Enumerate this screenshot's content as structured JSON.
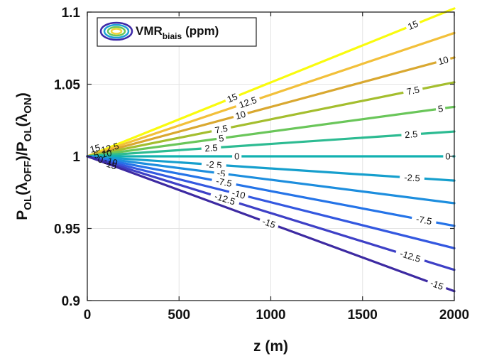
{
  "chart_data": {
    "type": "line",
    "title": "",
    "xlabel": "z (m)",
    "ylabel": "P_OL(λ_OFF)/P_OL(λ_ON)",
    "xlim": [
      0,
      2000
    ],
    "ylim": [
      0.9,
      1.1
    ],
    "xticks": [
      0,
      500,
      1000,
      1500,
      2000
    ],
    "yticks": [
      0.9,
      0.95,
      1,
      1.05,
      1.1
    ],
    "xtick_labels": [
      "0",
      "500",
      "1000",
      "1500",
      "2000"
    ],
    "ytick_labels": [
      "0.9",
      "0.95",
      "1",
      "1.05",
      "1.1"
    ],
    "grid": true,
    "legend": {
      "position": "top-left",
      "label_main": "VMR",
      "label_sub": "biais",
      "label_unit": "(ppm)"
    },
    "series": [
      {
        "name": "15",
        "level_label": "15",
        "x": [
          0,
          2000
        ],
        "y": [
          1,
          1.1025
        ],
        "color": "#f9fb0e"
      },
      {
        "name": "12.5",
        "level_label": "12.5",
        "x": [
          0,
          2000
        ],
        "y": [
          1,
          1.0855
        ],
        "color": "#f2c03a"
      },
      {
        "name": "10",
        "level_label": "10",
        "x": [
          0,
          2000
        ],
        "y": [
          1,
          1.0685
        ],
        "color": "#d9a830"
      },
      {
        "name": "7.5",
        "level_label": "7.5",
        "x": [
          0,
          2000
        ],
        "y": [
          1,
          1.0513
        ],
        "color": "#a4be2e"
      },
      {
        "name": "5",
        "level_label": "5",
        "x": [
          0,
          2000
        ],
        "y": [
          1,
          1.0343
        ],
        "color": "#6ac65a"
      },
      {
        "name": "2.5",
        "level_label": "2.5",
        "x": [
          0,
          2000
        ],
        "y": [
          1,
          1.0172
        ],
        "color": "#2dbb92"
      },
      {
        "name": "0",
        "level_label": "0",
        "x": [
          0,
          2000
        ],
        "y": [
          1,
          1.0
        ],
        "color": "#12b1b0"
      },
      {
        "name": "-2.5",
        "level_label": "-2.5",
        "x": [
          0,
          2000
        ],
        "y": [
          1,
          0.9832
        ],
        "color": "#169fcd"
      },
      {
        "name": "-5",
        "level_label": "-5",
        "x": [
          0,
          2000
        ],
        "y": [
          1,
          0.9675
        ],
        "color": "#1d8ede"
      },
      {
        "name": "-7.5",
        "level_label": "-7.5",
        "x": [
          0,
          2000
        ],
        "y": [
          1,
          0.9518
        ],
        "color": "#2574e8"
      },
      {
        "name": "-10",
        "level_label": "-10",
        "x": [
          0,
          2000
        ],
        "y": [
          1,
          0.9363
        ],
        "color": "#3458e0"
      },
      {
        "name": "-12.5",
        "level_label": "-12.5",
        "x": [
          0,
          2000
        ],
        "y": [
          1,
          0.9213
        ],
        "color": "#3e40c6"
      },
      {
        "name": "-15",
        "level_label": "-15",
        "x": [
          0,
          2000
        ],
        "y": [
          1,
          0.9065
        ],
        "color": "#3d2aa2"
      }
    ],
    "labels": [
      {
        "text": "15",
        "x": 1775,
        "series": 0
      },
      {
        "text": "15",
        "x": 790,
        "series": 0
      },
      {
        "text": "12.5",
        "x": 875,
        "series": 1
      },
      {
        "text": "10",
        "x": 835,
        "series": 2
      },
      {
        "text": "10",
        "x": 1940,
        "series": 2
      },
      {
        "text": "7.5",
        "x": 730,
        "series": 3
      },
      {
        "text": "7.5",
        "x": 1775,
        "series": 3
      },
      {
        "text": "5",
        "x": 730,
        "series": 4
      },
      {
        "text": "5",
        "x": 1925,
        "series": 4
      },
      {
        "text": "2.5",
        "x": 675,
        "series": 5
      },
      {
        "text": "2.5",
        "x": 1765,
        "series": 5
      },
      {
        "text": "0",
        "x": 815,
        "series": 6
      },
      {
        "text": "0",
        "x": 1965,
        "series": 6
      },
      {
        "text": "-2.5",
        "x": 690,
        "series": 7
      },
      {
        "text": "-2.5",
        "x": 1770,
        "series": 7
      },
      {
        "text": "-5",
        "x": 730,
        "series": 8
      },
      {
        "text": "-7.5",
        "x": 745,
        "series": 9
      },
      {
        "text": "-7.5",
        "x": 1835,
        "series": 9
      },
      {
        "text": "-10",
        "x": 825,
        "series": 10
      },
      {
        "text": "-12.5",
        "x": 750,
        "series": 11
      },
      {
        "text": "-12.5",
        "x": 1760,
        "series": 11
      },
      {
        "text": "-15",
        "x": 990,
        "series": 12
      },
      {
        "text": "-15",
        "x": 1905,
        "series": 12
      }
    ],
    "origin_cluster_labels": [
      "15",
      "12.5",
      "5",
      "10",
      "0",
      "-10",
      "-15"
    ]
  }
}
